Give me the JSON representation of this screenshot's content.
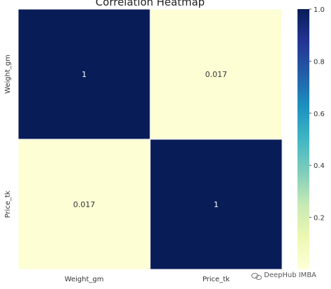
{
  "chart_data": {
    "type": "heatmap",
    "title": "Correlation Heatmap",
    "row_labels": [
      "Weight_gm",
      "Price_tk"
    ],
    "col_labels": [
      "Weight_gm",
      "Price_tk"
    ],
    "values": [
      [
        1,
        0.017
      ],
      [
        0.017,
        1
      ]
    ],
    "cell_text": [
      [
        "1",
        "0.017"
      ],
      [
        "0.017",
        "1"
      ]
    ],
    "colorbar": {
      "range": [
        0,
        1
      ],
      "ticks": [
        0.2,
        0.4,
        0.6,
        0.8,
        1.0
      ],
      "tick_labels": [
        "0.2",
        "0.4",
        "0.6",
        "0.8",
        "1.0"
      ],
      "colormap": "YlGnBu"
    },
    "colors": {
      "high": "#081d58",
      "low": "#ffffd9",
      "text_on_dark": "#ffffff",
      "text_on_light": "#333333"
    }
  },
  "watermark": {
    "text": "DeepHub IMBA",
    "icon": "wechat-icon"
  }
}
